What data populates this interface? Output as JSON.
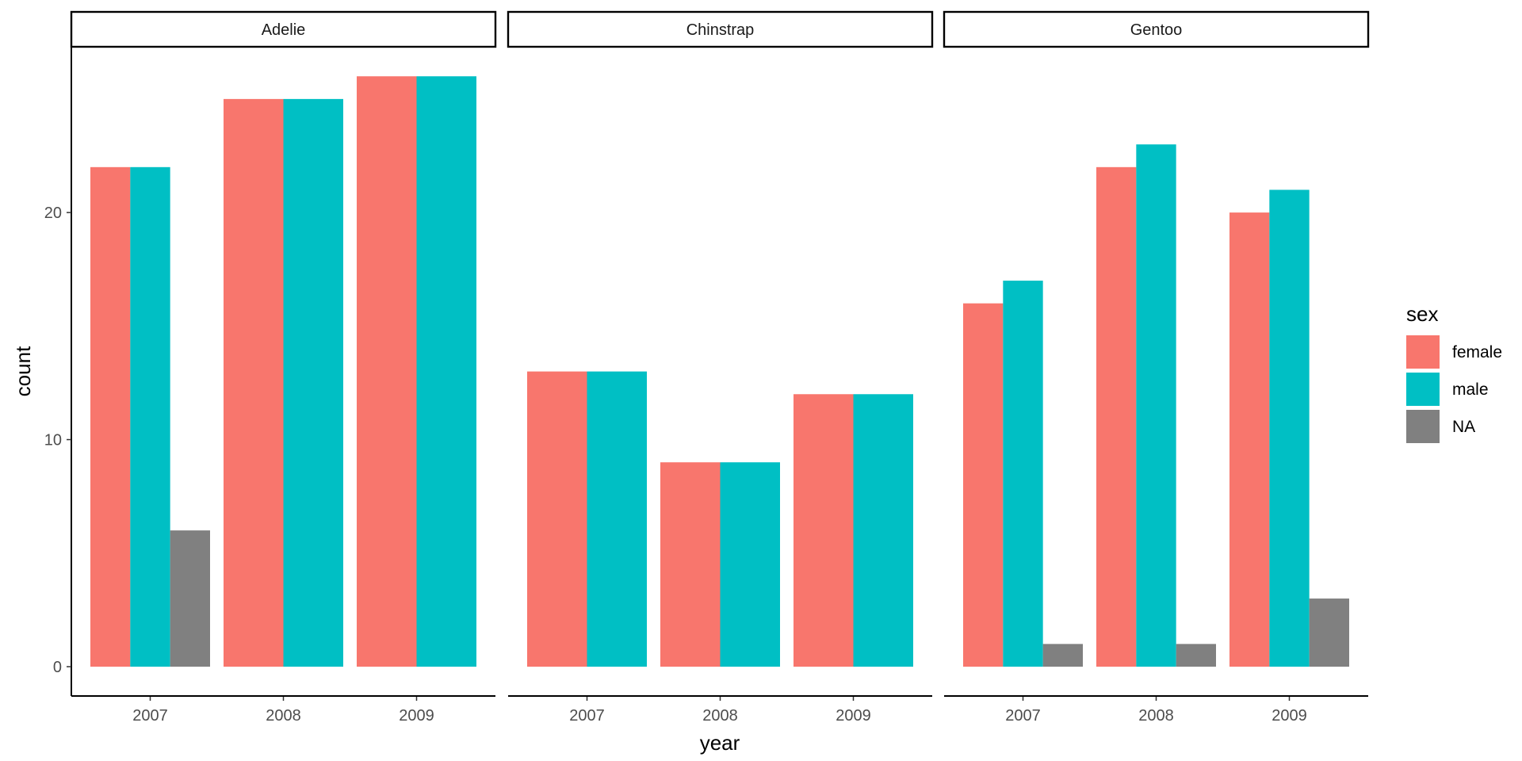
{
  "chart_data": {
    "type": "bar",
    "title": "",
    "xlabel": "year",
    "ylabel": "count",
    "ylim": [
      0,
      27.3
    ],
    "yticks": [
      0,
      10,
      20
    ],
    "categories": [
      "2007",
      "2008",
      "2009"
    ],
    "grid": false,
    "legend": {
      "title": "sex",
      "position": "right",
      "items": [
        {
          "label": "female",
          "color": "#F8766D"
        },
        {
          "label": "male",
          "color": "#00BFC4"
        },
        {
          "label": "NA",
          "color": "#808080"
        }
      ]
    },
    "facets": [
      {
        "name": "Adelie",
        "groups": [
          {
            "year": "2007",
            "female": 22,
            "male": 22,
            "NA": 6
          },
          {
            "year": "2008",
            "female": 25,
            "male": 25
          },
          {
            "year": "2009",
            "female": 26,
            "male": 26
          }
        ]
      },
      {
        "name": "Chinstrap",
        "groups": [
          {
            "year": "2007",
            "female": 13,
            "male": 13
          },
          {
            "year": "2008",
            "female": 9,
            "male": 9
          },
          {
            "year": "2009",
            "female": 12,
            "male": 12
          }
        ]
      },
      {
        "name": "Gentoo",
        "groups": [
          {
            "year": "2007",
            "female": 16,
            "male": 17,
            "NA": 1
          },
          {
            "year": "2008",
            "female": 22,
            "male": 23,
            "NA": 1
          },
          {
            "year": "2009",
            "female": 20,
            "male": 21,
            "NA": 3
          }
        ]
      }
    ]
  }
}
